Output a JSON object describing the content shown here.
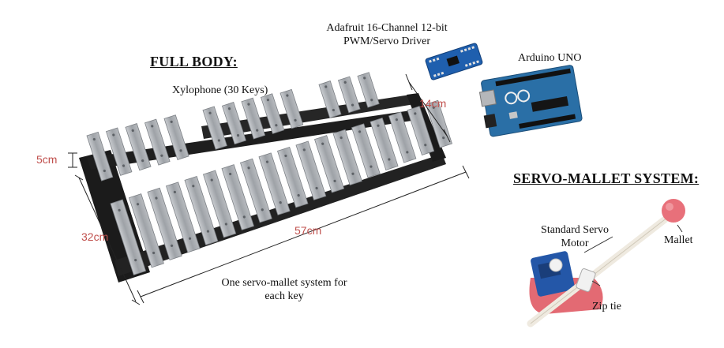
{
  "colors": {
    "dimension_text": "#c0504d",
    "key_metal": "#a8acb1",
    "frame": "#1b1b1b",
    "board_blue": "#1f5fae",
    "arduino_blue": "#2a6fa6",
    "mallet_head": "#e8707a",
    "servo_blue": "#2457a8"
  },
  "full_body": {
    "heading": "FULL BODY:",
    "xylophone_label": "Xylophone (30 Keys)",
    "dims": {
      "height": "5cm",
      "width": "14cm",
      "depth": "32cm",
      "length": "57cm"
    },
    "servo_note": "One servo-mallet system for each key"
  },
  "driver": {
    "label": "Adafruit 16-Channel 12-bit PWM/Servo Driver",
    "icon": "pwm-driver-board"
  },
  "arduino": {
    "label": "Arduino UNO",
    "icon": "arduino-uno-board"
  },
  "servo_mallet": {
    "heading": "SERVO-MALLET SYSTEM:",
    "servo_label": "Standard Servo Motor",
    "mallet_label": "Mallet",
    "zip_tie_label": "Zip tie"
  }
}
